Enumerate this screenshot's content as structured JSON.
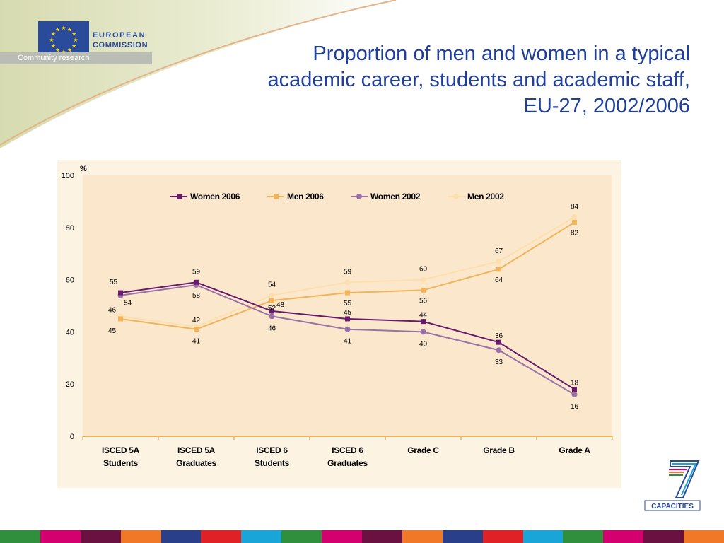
{
  "header": {
    "org_line1": "EUROPEAN",
    "org_line2": "COMMISSION",
    "org_subtitle": "Community research",
    "title": "Proportion of men and women in a typical academic career, students and academic staff, EU-27, 2002/2006"
  },
  "footer_logo": {
    "label": "CAPACITIES"
  },
  "colors": {
    "title": "#1f3f9c",
    "eu_blue": "#2a4a9a",
    "panel": "#fdf3e3",
    "plot": "#fbe8cc"
  },
  "stripes": [
    "#2f8f3d",
    "#d4006f",
    "#6b1142",
    "#f07826",
    "#2a3f8a",
    "#e02226",
    "#1aa5d8",
    "#2f8f3d",
    "#d4006f",
    "#6b1142",
    "#f07826",
    "#2a3f8a",
    "#e02226",
    "#1aa5d8",
    "#2f8f3d",
    "#d4006f",
    "#6b1142",
    "#f07826"
  ],
  "chart_data": {
    "type": "line",
    "title": "Proportion of men and women in a typical academic career, students and academic staff, EU-27, 2002/2006",
    "ylabel": "%",
    "xlabel": "",
    "ylim": [
      0,
      100
    ],
    "yticks": [
      0,
      20,
      40,
      60,
      80,
      100
    ],
    "grid": false,
    "legend_position": "top",
    "categories": [
      [
        "ISCED 5A",
        "Students"
      ],
      [
        "ISCED 5A",
        "Graduates"
      ],
      [
        "ISCED 6",
        "Students"
      ],
      [
        "ISCED 6",
        "Graduates"
      ],
      [
        "Grade C"
      ],
      [
        "Grade B"
      ],
      [
        "Grade A"
      ]
    ],
    "series": [
      {
        "name": "Women 2006",
        "color": "#6a1a6e",
        "marker": "square",
        "values": [
          55,
          59,
          48,
          45,
          44,
          36,
          18
        ]
      },
      {
        "name": "Men 2006",
        "color": "#f2b35a",
        "marker": "square",
        "values": [
          45,
          41,
          52,
          55,
          56,
          64,
          82
        ]
      },
      {
        "name": "Women 2002",
        "color": "#9a72a8",
        "marker": "circle",
        "values": [
          54,
          58,
          46,
          41,
          40,
          33,
          16
        ]
      },
      {
        "name": "Men 2002",
        "color": "#fddfae",
        "marker": "circle",
        "values": [
          46,
          42,
          54,
          59,
          60,
          67,
          84
        ]
      }
    ]
  }
}
